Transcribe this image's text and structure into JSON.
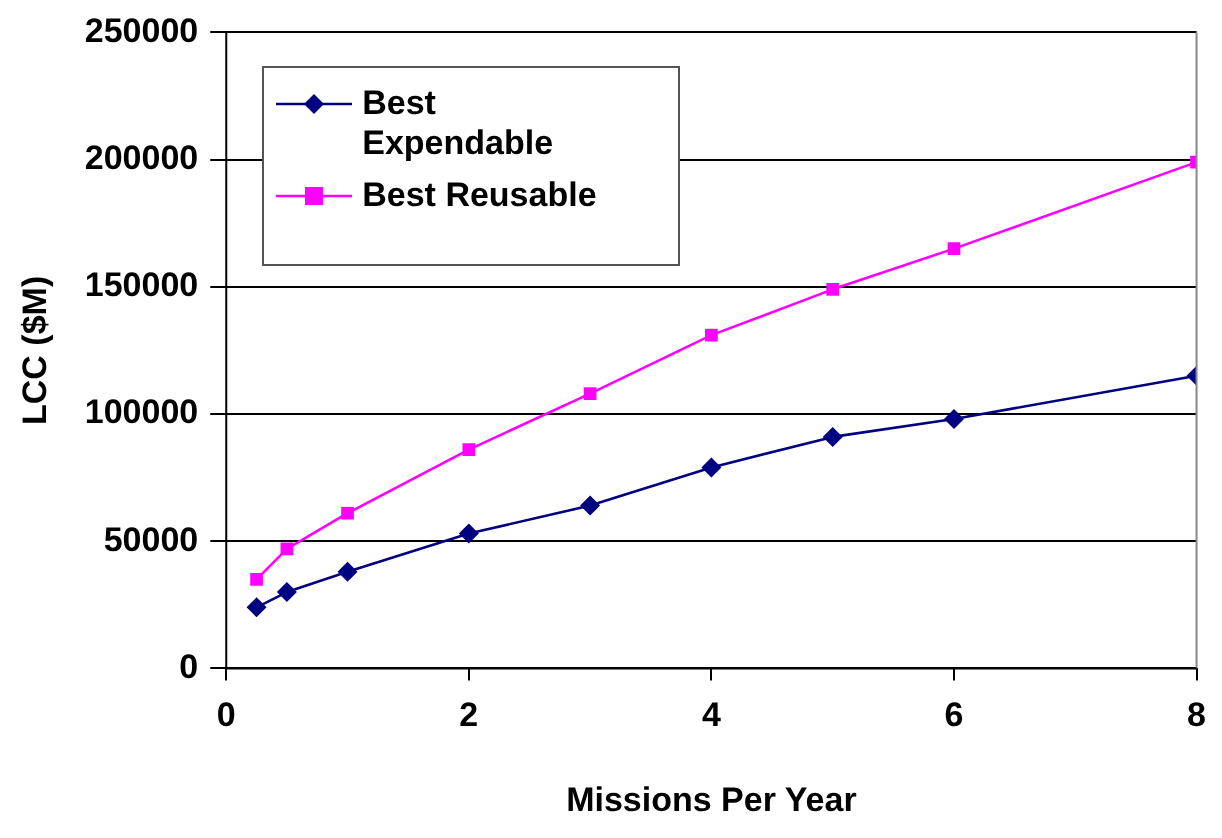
{
  "chart_data": {
    "type": "line",
    "xlabel": "Missions Per Year",
    "ylabel": "LCC ($M)",
    "x": [
      0.25,
      0.5,
      1,
      2,
      3,
      4,
      5,
      6,
      8
    ],
    "series": [
      {
        "name": "Best Expendable",
        "color": "#000080",
        "marker": "diamond",
        "values": [
          24000,
          30000,
          38000,
          53000,
          64000,
          79000,
          91000,
          98000,
          115000
        ]
      },
      {
        "name": "Best Reusable",
        "color": "#ff00ff",
        "marker": "square",
        "values": [
          35000,
          47000,
          61000,
          86000,
          108000,
          131000,
          149000,
          165000,
          199000
        ]
      }
    ],
    "xlim": [
      0,
      8
    ],
    "xticks": [
      0,
      2,
      4,
      6,
      8
    ],
    "ylim": [
      0,
      250000
    ],
    "yticks": [
      0,
      50000,
      100000,
      150000,
      200000,
      250000
    ],
    "grid": "y",
    "legend": "top left",
    "line_style": "solid"
  }
}
